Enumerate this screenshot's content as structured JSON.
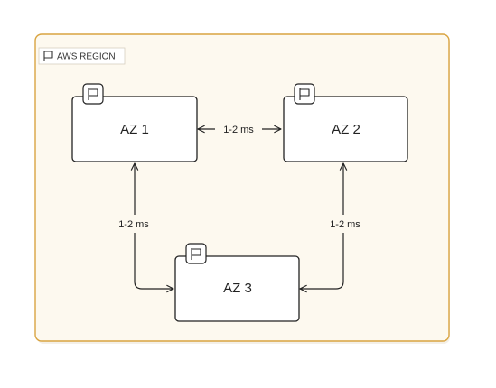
{
  "region": {
    "label": "AWS REGION",
    "icon": "flag-icon",
    "fill": "#fdf9ef",
    "border": "#d9a441"
  },
  "zones": [
    {
      "label": "AZ 1",
      "icon": "flag-icon"
    },
    {
      "label": "AZ 2",
      "icon": "flag-icon"
    },
    {
      "label": "AZ 3",
      "icon": "flag-icon"
    }
  ],
  "links": [
    {
      "from": "AZ 1",
      "to": "AZ 2",
      "label": "1-2 ms"
    },
    {
      "from": "AZ 1",
      "to": "AZ 3",
      "label": "1-2 ms"
    },
    {
      "from": "AZ 2",
      "to": "AZ 3",
      "label": "1-2 ms"
    }
  ]
}
